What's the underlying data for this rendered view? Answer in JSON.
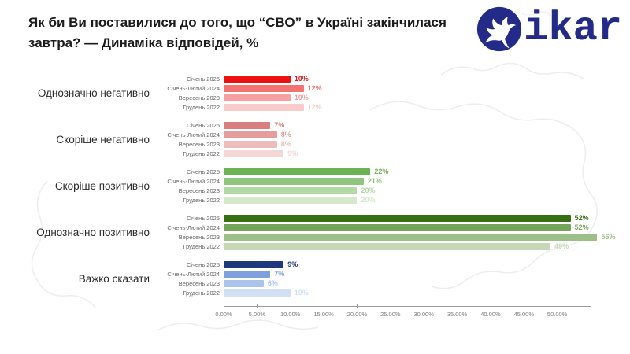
{
  "title": "Як би Ви поставилися до того, що “СВО” в Україні закінчилася завтра? — Динаміка відповідей, %",
  "logo": {
    "text": "ikar",
    "icon": "dove-icon",
    "color": "#232a87"
  },
  "chart_data": {
    "type": "bar",
    "orientation": "horizontal",
    "unit": "%",
    "axis": {
      "min": 0,
      "max": 55,
      "tick_step": 5,
      "tick_labels": [
        "0.00%",
        "5.00%",
        "10.00%",
        "15.00%",
        "20.00%",
        "25.00%",
        "30.00%",
        "35.00%",
        "40.00%",
        "45.00%",
        "50.00%"
      ]
    },
    "series_labels": [
      "Січень 2025",
      "Січень-Лютий 2024",
      "Вересень 2023",
      "Грудень 2022"
    ],
    "groups": [
      {
        "category": "Однозначно негативно",
        "values": [
          10,
          12,
          10,
          12
        ],
        "colors": [
          "#ee1111",
          "#f37272",
          "#f6a0a0",
          "#f9cbcb"
        ]
      },
      {
        "category": "Скоріше негативно",
        "values": [
          7,
          8,
          8,
          9
        ],
        "colors": [
          "#d97f7f",
          "#e39d9d",
          "#edbcbc",
          "#f5d7d7"
        ]
      },
      {
        "category": "Скоріше позитивно",
        "values": [
          22,
          21,
          20,
          20
        ],
        "colors": [
          "#6cb356",
          "#90c57f",
          "#b4d8a6",
          "#d5e9cb"
        ]
      },
      {
        "category": "Однозначно позитивно",
        "values": [
          52,
          52,
          56,
          49
        ],
        "colors": [
          "#357013",
          "#74a458",
          "#9dbf88",
          "#c5d9b6"
        ]
      },
      {
        "category": "Важко сказати",
        "values": [
          9,
          7,
          6,
          10
        ],
        "colors": [
          "#1e3a7c",
          "#7ea1dd",
          "#abc4ec",
          "#d2e0f6"
        ]
      }
    ]
  }
}
